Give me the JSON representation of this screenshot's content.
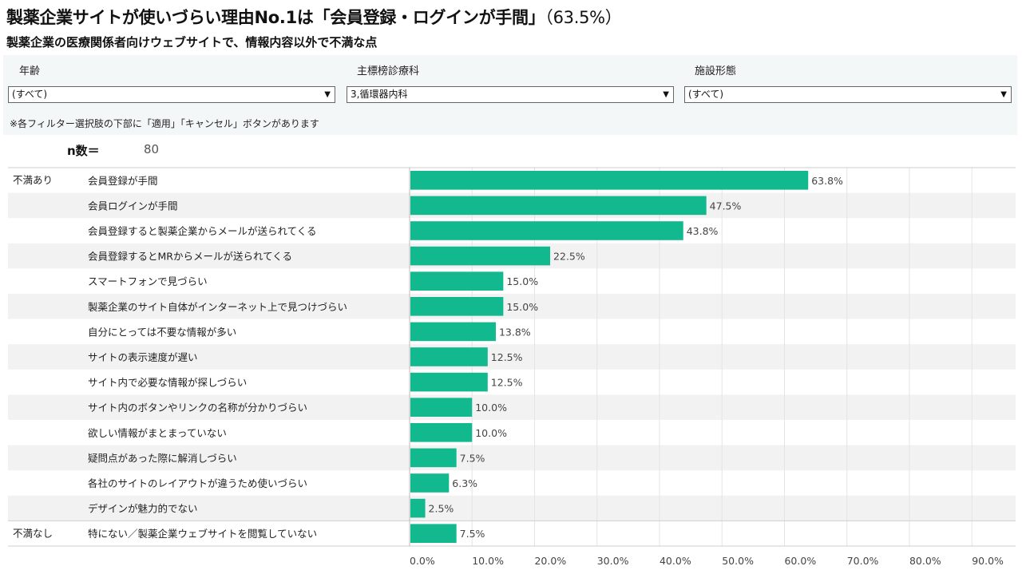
{
  "header": {
    "title_main": "製薬企業サイトが使いづらい理由No.1は「会員登録・ログインが手間」",
    "title_pct": "（63.5%）",
    "subtitle": "製薬企業の医療関係者向けウェブサイトで、情報内容以外で不満な点"
  },
  "filters": {
    "age": {
      "label": "年齢",
      "value": "(すべて)"
    },
    "department": {
      "label": "主標榜診療科",
      "value": "3,循環器内科"
    },
    "facility": {
      "label": "施設形態",
      "value": "(すべて)"
    },
    "note": "※各フィルター選択肢の下部に「適用」「キャンセル」ボタンがあります"
  },
  "sample": {
    "label": "n数＝",
    "value": "80"
  },
  "colors": {
    "bar": "#12b88e",
    "band": "#f2f2f2",
    "grid": "#e4e4e4"
  },
  "chart_data": {
    "type": "bar",
    "orientation": "horizontal",
    "groups": [
      {
        "name": "不満あり",
        "start": 0,
        "count": 14
      },
      {
        "name": "不満なし",
        "start": 14,
        "count": 1
      }
    ],
    "categories": [
      "会員登録が手間",
      "会員ログインが手間",
      "会員登録すると製薬企業からメールが送られてくる",
      "会員登録するとMRからメールが送られてくる",
      "スマートフォンで見づらい",
      "製薬企業のサイト自体がインターネット上で見つけづらい",
      "自分にとっては不要な情報が多い",
      "サイトの表示速度が遅い",
      "サイト内で必要な情報が探しづらい",
      "サイト内のボタンやリンクの名称が分かりづらい",
      "欲しい情報がまとまっていない",
      "疑問点があった際に解消しづらい",
      "各社のサイトのレイアウトが違うため使いづらい",
      "デザインが魅力的でない",
      "特にない／製薬企業ウェブサイトを閲覧していない"
    ],
    "values": [
      63.8,
      47.5,
      43.8,
      22.5,
      15.0,
      15.0,
      13.8,
      12.5,
      12.5,
      10.0,
      10.0,
      7.5,
      6.3,
      2.5,
      7.5
    ],
    "value_labels": [
      "63.8%",
      "47.5%",
      "43.8%",
      "22.5%",
      "15.0%",
      "15.0%",
      "13.8%",
      "12.5%",
      "12.5%",
      "10.0%",
      "10.0%",
      "7.5%",
      "6.3%",
      "2.5%",
      "7.5%"
    ],
    "xlim": [
      0,
      97
    ],
    "xticks": [
      "0.0%",
      "10.0%",
      "20.0%",
      "30.0%",
      "40.0%",
      "50.0%",
      "60.0%",
      "70.0%",
      "80.0%",
      "90.0%"
    ],
    "xtick_values": [
      0,
      10,
      20,
      30,
      40,
      50,
      60,
      70,
      80,
      90
    ],
    "grid": true
  }
}
